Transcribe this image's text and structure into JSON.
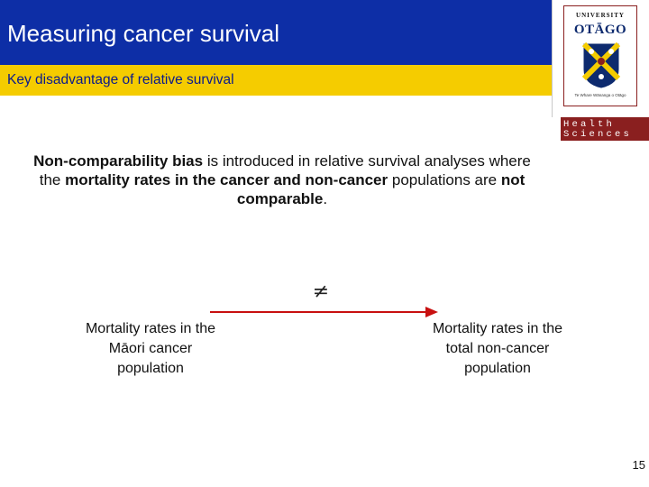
{
  "header": {
    "title": "Measuring cancer survival",
    "subtitle": "Key disadvantage of relative survival"
  },
  "logo": {
    "university_line": "UNIVERSITY",
    "of_line": "of",
    "name": "OTĀGO",
    "maori_line": "Te Whare Wānanga o Otāgo",
    "faculty_line1": "Health",
    "faculty_line2": "Sciences"
  },
  "body": {
    "t1": "Non-comparability bias",
    "t2": " is introduced in relative survival analyses where the ",
    "t3": "mortality rates in the cancer and non-cancer",
    "t4": " populations are ",
    "t5": "not comparable",
    "t6": "."
  },
  "comparison": {
    "symbol": "≠",
    "left": {
      "line1": "Mortality rates in the",
      "line2": "Māori cancer",
      "line3": "population"
    },
    "right": {
      "line1": "Mortality rates in the",
      "line2": "total non-cancer",
      "line3": "population"
    }
  },
  "page_number": "15",
  "colors": {
    "title_bar": "#0d2ea6",
    "subtitle_bar": "#f5cc00",
    "subtitle_text": "#0a1a8c",
    "accent_red": "#c81010",
    "logo_maroon": "#8a1f1f"
  }
}
